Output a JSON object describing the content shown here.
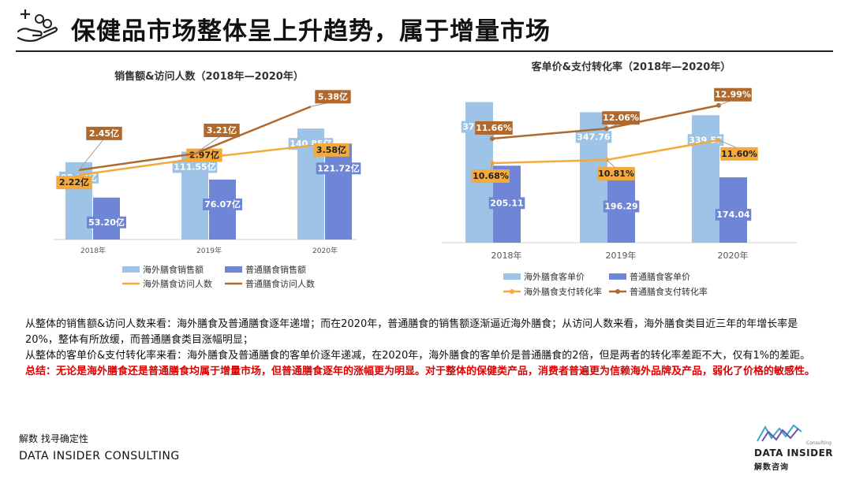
{
  "page": {
    "title": "保健品市场整体呈上升趋势，属于增量市场",
    "icon": "hand-money-icon"
  },
  "colors": {
    "light_blue": "#9dc3e6",
    "dark_blue": "#6f86d6",
    "orange": "#f4a93a",
    "brown": "#b0682c",
    "conclusion_red": "#e00000"
  },
  "chart_data": [
    {
      "type": "bar",
      "title": "销售额&访问人数（2018年—2020年）",
      "categories": [
        "2018年",
        "2019年",
        "2020年"
      ],
      "ylim": [
        0,
        150
      ],
      "series": [
        {
          "name": "海外膳食销售额",
          "values": [
            98.12,
            111.55,
            140.85
          ],
          "labels": [
            "98.12亿",
            "111.55亿",
            "140.85亿"
          ]
        },
        {
          "name": "普通膳食销售额",
          "values": [
            53.2,
            76.07,
            121.72
          ],
          "labels": [
            "53.20亿",
            "76.07亿",
            "121.72亿"
          ]
        }
      ],
      "line_series": [
        {
          "name": "海外膳食访问人数",
          "values": [
            2.22,
            2.97,
            3.58
          ],
          "labels": [
            "2.22亿",
            "2.97亿",
            "3.58亿"
          ]
        },
        {
          "name": "普通膳食访问人数",
          "values": [
            2.45,
            3.21,
            5.38
          ],
          "labels": [
            "2.45亿",
            "3.21亿",
            "5.38亿"
          ]
        }
      ],
      "line_ylim": [
        1.5,
        5.5
      ],
      "legend": "bottom",
      "grid": false
    },
    {
      "type": "bar",
      "title": "客单价&支付转化率（2018年—2020年）",
      "categories": [
        "2018年",
        "2019年",
        "2020年"
      ],
      "ylim": [
        0,
        420
      ],
      "series": [
        {
          "name": "海外膳食客单价",
          "values": [
            374.62,
            347.76,
            339.57
          ],
          "labels": [
            "374.62",
            "347.76",
            "339.57"
          ]
        },
        {
          "name": "普通膳食客单价",
          "values": [
            205.11,
            196.29,
            174.04
          ],
          "labels": [
            "205.11",
            "196.29",
            "174.04"
          ]
        }
      ],
      "line_series": [
        {
          "name": "海外膳食支付转化率",
          "values": [
            10.68,
            10.81,
            11.6
          ],
          "labels": [
            "10.68%",
            "10.81%",
            "11.60%"
          ]
        },
        {
          "name": "普通膳食支付转化率",
          "values": [
            11.66,
            12.06,
            12.99
          ],
          "labels": [
            "11.66%",
            "12.06%",
            "12.99%"
          ]
        }
      ],
      "line_ylim": [
        7.5,
        13.8
      ],
      "legend": "bottom",
      "grid": false
    }
  ],
  "summary": {
    "line1": "从整体的销售额&访问人数来看：海外膳食及普通膳食逐年递增；而在2020年，普通膳食的销售额逐渐逼近海外膳食；从访问人数来看，海外膳食类目近三年的年增长率是",
    "line2": "20%，整体有所放缓，而普通膳食类目涨幅明显；",
    "line3": "从整体的客单价&支付转化率来看：海外膳食及普通膳食的客单价逐年递减，在2020年，海外膳食的客单价是普通膳食的2倍，但是两者的转化率差距不大，仅有1%的差距。",
    "conclusion": "总结：无论是海外膳食还是普通膳食均属于增量市场，但普通膳食逐年的涨幅更为明显。对于整体的保健类产品，消费者普遍更为信赖海外品牌及产品，弱化了价格的敏感性。"
  },
  "footer": {
    "cn": "解数 找寻确定性",
    "en": "DATA INSIDER CONSULTING",
    "logo_consulting": "Consulting",
    "logo_name": "DATA INSIDER",
    "logo_cn": "解数咨询"
  }
}
